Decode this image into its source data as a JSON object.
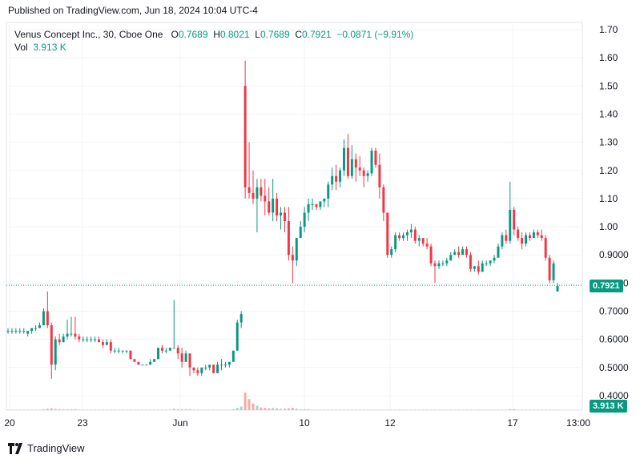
{
  "header": {
    "published": "Published on TradingView.com, Jun 18, 2024 10:04 UTC-4"
  },
  "legend": {
    "symbol": "Venus Concept Inc., 30, Cboe One",
    "o_label": "O",
    "o_value": "0.7689",
    "h_label": "H",
    "h_value": "0.8021",
    "l_label": "L",
    "l_value": "0.7689",
    "c_label": "C",
    "c_value": "0.7921",
    "change": "−0.0871 (−9.91%)",
    "vol_label": "Vol",
    "vol_value": "3.913 K"
  },
  "badges": {
    "last_price": "0.7921",
    "last_volume": "3.913 K"
  },
  "footer": {
    "brand": "TradingView"
  },
  "colors": {
    "up": "#089981",
    "down": "#f23645",
    "vol_up": "#a5d6c9",
    "vol_down": "#f7a9a7",
    "grid": "#f0f3fa",
    "text": "#131722"
  },
  "chart_data": {
    "type": "candlestick",
    "yaxis_ticks": [
      "1.70",
      "1.60",
      "1.50",
      "1.40",
      "1.30",
      "1.20",
      "1.10",
      "1.00",
      "0.9000",
      "0.8000",
      "0.7000",
      "0.6000",
      "0.5000",
      "0.4000"
    ],
    "xaxis_ticks": [
      "20",
      "23",
      "Jun",
      "10",
      "12",
      "17",
      "13:00"
    ],
    "grid": true,
    "last_price_line": 0.7921,
    "candles": [
      [
        0.63,
        0.64,
        0.62,
        0.63,
        1
      ],
      [
        0.63,
        0.64,
        0.62,
        0.63,
        1
      ],
      [
        0.63,
        0.64,
        0.62,
        0.63,
        1
      ],
      [
        0.63,
        0.64,
        0.62,
        0.63,
        1
      ],
      [
        0.63,
        0.64,
        0.62,
        0.63,
        1
      ],
      [
        0.62,
        0.63,
        0.61,
        0.63,
        1
      ],
      [
        0.63,
        0.64,
        0.62,
        0.64,
        1
      ],
      [
        0.64,
        0.65,
        0.63,
        0.64,
        1
      ],
      [
        0.64,
        0.66,
        0.64,
        0.65,
        1
      ],
      [
        0.65,
        0.71,
        0.65,
        0.7,
        2
      ],
      [
        0.7,
        0.77,
        0.64,
        0.65,
        3
      ],
      [
        0.65,
        0.66,
        0.46,
        0.51,
        4
      ],
      [
        0.51,
        0.61,
        0.49,
        0.6,
        3
      ],
      [
        0.6,
        0.62,
        0.58,
        0.59,
        2
      ],
      [
        0.59,
        0.62,
        0.59,
        0.61,
        2
      ],
      [
        0.61,
        0.67,
        0.6,
        0.62,
        2
      ],
      [
        0.62,
        0.68,
        0.61,
        0.62,
        2
      ],
      [
        0.62,
        0.68,
        0.6,
        0.61,
        2
      ],
      [
        0.61,
        0.62,
        0.59,
        0.6,
        1
      ],
      [
        0.6,
        0.61,
        0.59,
        0.6,
        1
      ],
      [
        0.6,
        0.61,
        0.59,
        0.6,
        1
      ],
      [
        0.6,
        0.61,
        0.59,
        0.6,
        1
      ],
      [
        0.6,
        0.61,
        0.59,
        0.6,
        1
      ],
      [
        0.6,
        0.61,
        0.59,
        0.59,
        1
      ],
      [
        0.59,
        0.6,
        0.57,
        0.58,
        1
      ],
      [
        0.58,
        0.6,
        0.58,
        0.59,
        1
      ],
      [
        0.59,
        0.6,
        0.55,
        0.56,
        1
      ],
      [
        0.56,
        0.57,
        0.55,
        0.56,
        1
      ],
      [
        0.56,
        0.57,
        0.55,
        0.56,
        1
      ],
      [
        0.56,
        0.56,
        0.55,
        0.56,
        1
      ],
      [
        0.56,
        0.56,
        0.55,
        0.56,
        1
      ],
      [
        0.56,
        0.56,
        0.53,
        0.53,
        1
      ],
      [
        0.53,
        0.53,
        0.52,
        0.52,
        1
      ],
      [
        0.52,
        0.52,
        0.51,
        0.51,
        1
      ],
      [
        0.51,
        0.51,
        0.51,
        0.51,
        1
      ],
      [
        0.51,
        0.51,
        0.51,
        0.51,
        1
      ],
      [
        0.51,
        0.53,
        0.51,
        0.52,
        1
      ],
      [
        0.52,
        0.53,
        0.52,
        0.53,
        1
      ],
      [
        0.53,
        0.57,
        0.53,
        0.57,
        1
      ],
      [
        0.57,
        0.58,
        0.55,
        0.56,
        1
      ],
      [
        0.56,
        0.57,
        0.55,
        0.56,
        1
      ],
      [
        0.56,
        0.57,
        0.56,
        0.57,
        1
      ],
      [
        0.57,
        0.74,
        0.57,
        0.57,
        3
      ],
      [
        0.57,
        0.58,
        0.53,
        0.55,
        2
      ],
      [
        0.55,
        0.57,
        0.5,
        0.52,
        2
      ],
      [
        0.52,
        0.56,
        0.52,
        0.55,
        2
      ],
      [
        0.55,
        0.55,
        0.47,
        0.5,
        2
      ],
      [
        0.5,
        0.5,
        0.48,
        0.49,
        1
      ],
      [
        0.49,
        0.5,
        0.47,
        0.48,
        1
      ],
      [
        0.48,
        0.5,
        0.47,
        0.5,
        1
      ],
      [
        0.5,
        0.51,
        0.49,
        0.5,
        1
      ],
      [
        0.5,
        0.51,
        0.49,
        0.51,
        1
      ],
      [
        0.51,
        0.51,
        0.48,
        0.48,
        1
      ],
      [
        0.48,
        0.52,
        0.48,
        0.51,
        1
      ],
      [
        0.51,
        0.53,
        0.49,
        0.51,
        1
      ],
      [
        0.51,
        0.52,
        0.5,
        0.51,
        1
      ],
      [
        0.51,
        0.52,
        0.5,
        0.52,
        1
      ],
      [
        0.52,
        0.56,
        0.52,
        0.56,
        2
      ],
      [
        0.56,
        0.67,
        0.56,
        0.66,
        5
      ],
      [
        0.66,
        0.7,
        0.64,
        0.69,
        8
      ],
      [
        1.5,
        1.59,
        1.1,
        1.14,
        40
      ],
      [
        1.14,
        1.3,
        1.1,
        1.12,
        25
      ],
      [
        1.12,
        1.2,
        1.08,
        1.1,
        15
      ],
      [
        1.1,
        1.17,
        0.98,
        1.14,
        10
      ],
      [
        1.14,
        1.17,
        1.09,
        1.11,
        6
      ],
      [
        1.11,
        1.17,
        1.04,
        1.09,
        5
      ],
      [
        1.09,
        1.14,
        1.04,
        1.05,
        4
      ],
      [
        1.05,
        1.17,
        1.02,
        1.1,
        5
      ],
      [
        1.1,
        1.12,
        1.02,
        1.04,
        4
      ],
      [
        1.04,
        1.07,
        0.99,
        1.05,
        3
      ],
      [
        1.05,
        1.07,
        0.98,
        1.02,
        3
      ],
      [
        1.02,
        1.07,
        0.88,
        0.9,
        4
      ],
      [
        0.9,
        0.93,
        0.8,
        0.88,
        5
      ],
      [
        0.88,
        0.96,
        0.86,
        0.96,
        3
      ],
      [
        0.96,
        1.02,
        0.96,
        1.0,
        2
      ],
      [
        1.0,
        1.07,
        0.98,
        1.05,
        2
      ],
      [
        1.05,
        1.1,
        1.02,
        1.08,
        2
      ],
      [
        1.08,
        1.1,
        1.06,
        1.08,
        1
      ],
      [
        1.08,
        1.08,
        1.06,
        1.07,
        1
      ],
      [
        1.07,
        1.09,
        1.06,
        1.09,
        1
      ],
      [
        1.09,
        1.1,
        1.07,
        1.1,
        1
      ],
      [
        1.1,
        1.16,
        1.07,
        1.15,
        1
      ],
      [
        1.15,
        1.21,
        1.13,
        1.18,
        1
      ],
      [
        1.18,
        1.22,
        1.13,
        1.16,
        1
      ],
      [
        1.16,
        1.21,
        1.14,
        1.2,
        1
      ],
      [
        1.2,
        1.31,
        1.18,
        1.28,
        1
      ],
      [
        1.28,
        1.33,
        1.17,
        1.18,
        1
      ],
      [
        1.18,
        1.29,
        1.17,
        1.24,
        1
      ],
      [
        1.24,
        1.26,
        1.16,
        1.21,
        1
      ],
      [
        1.21,
        1.25,
        1.18,
        1.2,
        1
      ],
      [
        1.2,
        1.21,
        1.14,
        1.18,
        1
      ],
      [
        1.18,
        1.2,
        1.16,
        1.19,
        1
      ],
      [
        1.19,
        1.28,
        1.18,
        1.27,
        1
      ],
      [
        1.27,
        1.28,
        1.21,
        1.22,
        1
      ],
      [
        1.22,
        1.26,
        1.1,
        1.14,
        1
      ],
      [
        1.14,
        1.15,
        1.02,
        1.05,
        1
      ],
      [
        1.05,
        1.05,
        0.89,
        0.9,
        1
      ],
      [
        0.9,
        0.93,
        0.89,
        0.92,
        1
      ],
      [
        0.92,
        0.98,
        0.91,
        0.97,
        1
      ],
      [
        0.97,
        0.98,
        0.95,
        0.96,
        1
      ],
      [
        0.96,
        0.98,
        0.95,
        0.97,
        1
      ],
      [
        0.97,
        0.99,
        0.95,
        0.98,
        1
      ],
      [
        0.98,
        1.01,
        0.96,
        0.99,
        1
      ],
      [
        0.99,
        1.0,
        0.94,
        0.95,
        1
      ],
      [
        0.95,
        0.97,
        0.93,
        0.96,
        1
      ],
      [
        0.96,
        0.96,
        0.93,
        0.94,
        1
      ],
      [
        0.94,
        0.96,
        0.92,
        0.93,
        1
      ],
      [
        0.93,
        0.94,
        0.86,
        0.87,
        1
      ],
      [
        0.87,
        0.88,
        0.8,
        0.86,
        1
      ],
      [
        0.86,
        0.88,
        0.85,
        0.87,
        1
      ],
      [
        0.87,
        0.88,
        0.86,
        0.87,
        1
      ],
      [
        0.87,
        0.89,
        0.86,
        0.88,
        1
      ],
      [
        0.88,
        0.91,
        0.88,
        0.9,
        1
      ],
      [
        0.9,
        0.92,
        0.9,
        0.91,
        1
      ],
      [
        0.91,
        0.93,
        0.89,
        0.9,
        1
      ],
      [
        0.9,
        0.93,
        0.9,
        0.92,
        1
      ],
      [
        0.92,
        0.93,
        0.89,
        0.9,
        1
      ],
      [
        0.9,
        0.91,
        0.84,
        0.85,
        1
      ],
      [
        0.85,
        0.86,
        0.84,
        0.86,
        1
      ],
      [
        0.86,
        0.88,
        0.83,
        0.84,
        1
      ],
      [
        0.84,
        0.88,
        0.84,
        0.87,
        1
      ],
      [
        0.87,
        0.88,
        0.86,
        0.87,
        1
      ],
      [
        0.87,
        0.88,
        0.86,
        0.88,
        1
      ],
      [
        0.88,
        0.9,
        0.87,
        0.89,
        1
      ],
      [
        0.89,
        0.94,
        0.89,
        0.93,
        1
      ],
      [
        0.93,
        0.98,
        0.92,
        0.97,
        1
      ],
      [
        0.97,
        0.99,
        0.94,
        0.95,
        1
      ],
      [
        0.95,
        1.16,
        0.94,
        1.06,
        2
      ],
      [
        1.06,
        1.07,
        0.97,
        0.99,
        2
      ],
      [
        0.99,
        1.0,
        0.95,
        0.96,
        1
      ],
      [
        0.96,
        0.98,
        0.92,
        0.94,
        1
      ],
      [
        0.94,
        0.98,
        0.93,
        0.97,
        1
      ],
      [
        0.97,
        0.98,
        0.95,
        0.96,
        1
      ],
      [
        0.96,
        0.99,
        0.96,
        0.98,
        1
      ],
      [
        0.98,
        0.99,
        0.96,
        0.97,
        1
      ],
      [
        0.97,
        0.99,
        0.95,
        0.96,
        1
      ],
      [
        0.96,
        0.97,
        0.88,
        0.89,
        1
      ],
      [
        0.89,
        0.9,
        0.8,
        0.81,
        1
      ],
      [
        0.81,
        0.88,
        0.8,
        0.87,
        1
      ],
      [
        0.77,
        0.8,
        0.77,
        0.79,
        1
      ]
    ]
  }
}
